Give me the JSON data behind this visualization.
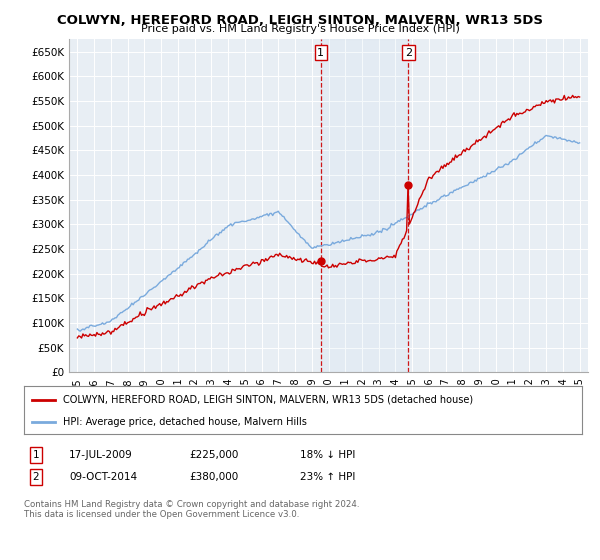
{
  "title": "COLWYN, HEREFORD ROAD, LEIGH SINTON, MALVERN, WR13 5DS",
  "subtitle": "Price paid vs. HM Land Registry's House Price Index (HPI)",
  "legend_line1": "COLWYN, HEREFORD ROAD, LEIGH SINTON, MALVERN, WR13 5DS (detached house)",
  "legend_line2": "HPI: Average price, detached house, Malvern Hills",
  "footnote": "Contains HM Land Registry data © Crown copyright and database right 2024.\nThis data is licensed under the Open Government Licence v3.0.",
  "red_color": "#cc0000",
  "blue_color": "#7aaadd",
  "annotation1_label": "1",
  "annotation1_date": "17-JUL-2009",
  "annotation1_price": "£225,000",
  "annotation1_note": "18% ↓ HPI",
  "annotation1_year": 2009.54,
  "annotation1_value": 225000,
  "annotation2_label": "2",
  "annotation2_date": "09-OCT-2014",
  "annotation2_price": "£380,000",
  "annotation2_note": "23% ↑ HPI",
  "annotation2_year": 2014.77,
  "annotation2_value": 380000,
  "ylim_min": 0,
  "ylim_max": 675000,
  "yticks": [
    0,
    50000,
    100000,
    150000,
    200000,
    250000,
    300000,
    350000,
    400000,
    450000,
    500000,
    550000,
    600000,
    650000
  ],
  "xlim_min": 1994.5,
  "xlim_max": 2025.5
}
